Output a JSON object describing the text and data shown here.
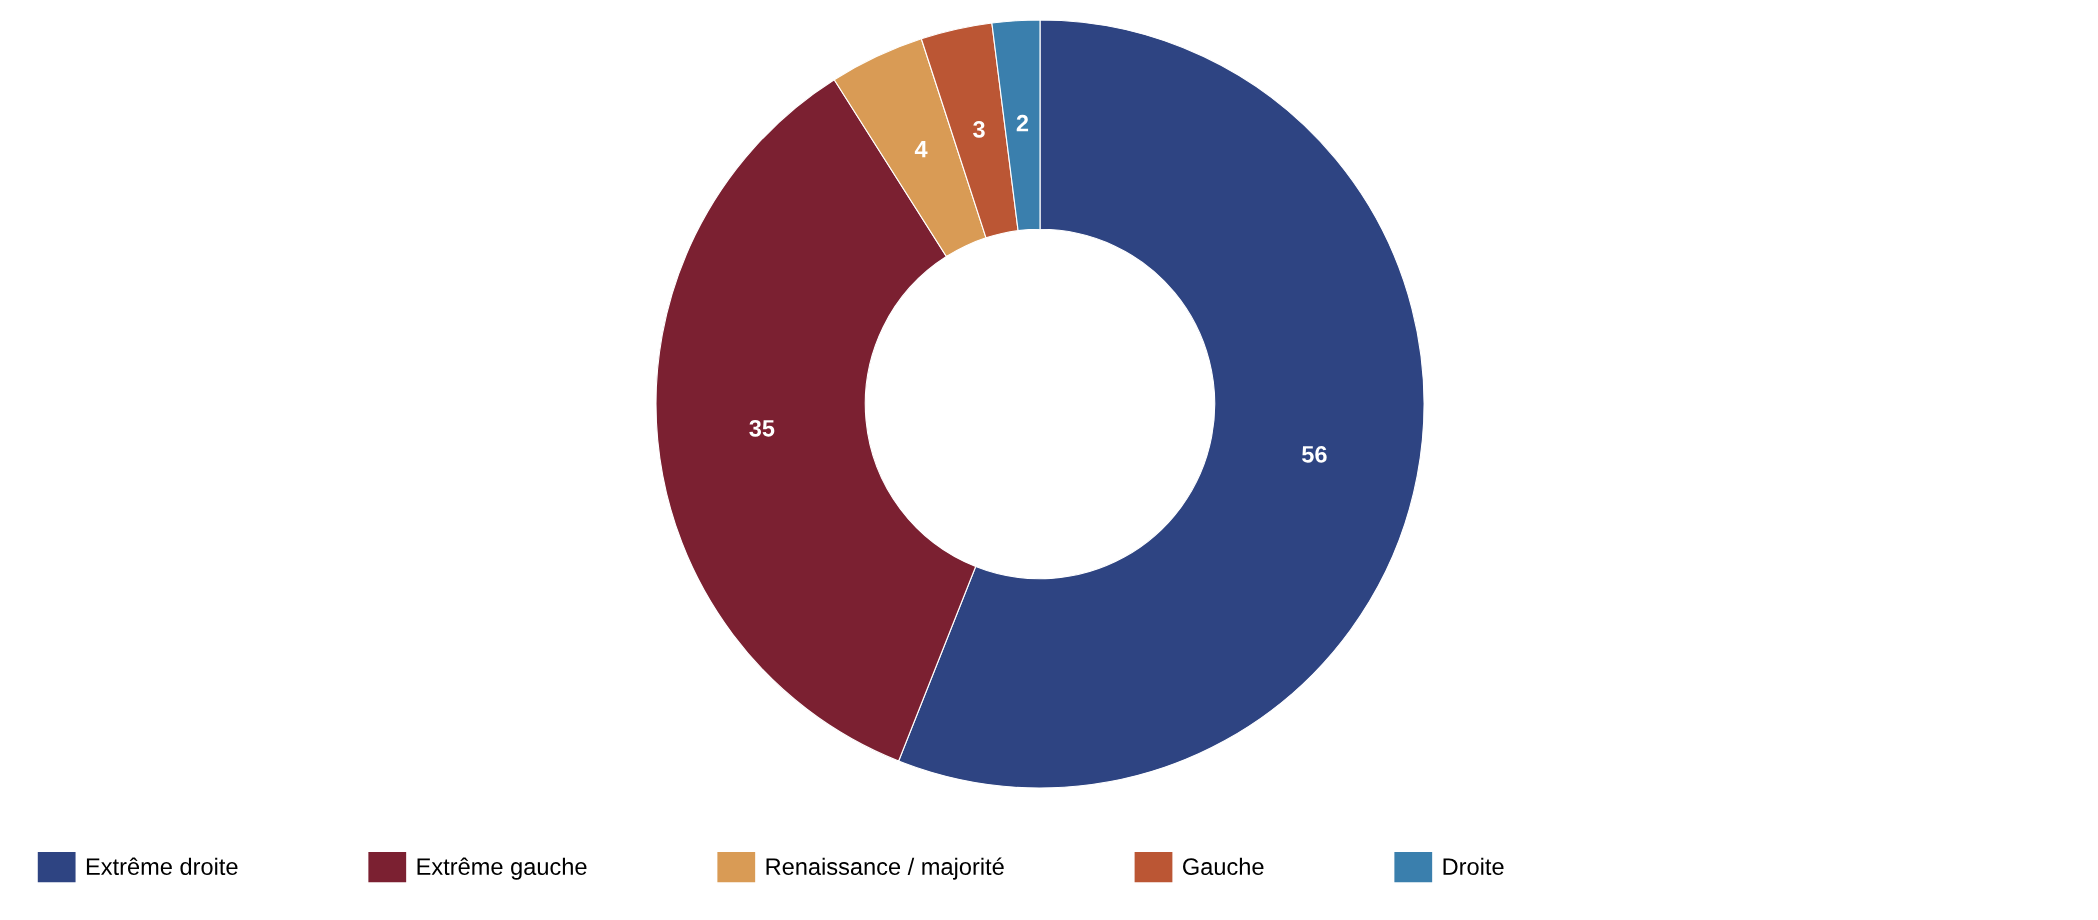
{
  "chart_data": {
    "type": "donut",
    "categories": [
      "Extrême droite",
      "Extrême gauche",
      "Renaissance / majorité",
      "Gauche",
      "Droite"
    ],
    "values": [
      56,
      35,
      4,
      3,
      2
    ],
    "colors": [
      "#2e4482",
      "#7b2031",
      "#d99b55",
      "#bb5634",
      "#3a7fad"
    ],
    "data_labels": true,
    "legend": "bottom left"
  }
}
